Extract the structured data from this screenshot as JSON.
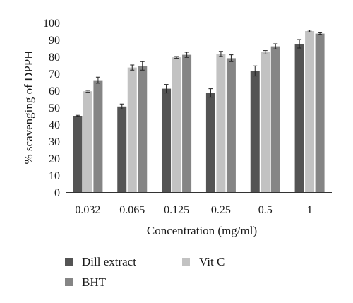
{
  "chart_data": {
    "type": "bar",
    "ylabel": "% scavenging of DPPH",
    "xlabel": "Concentration (mg/ml)",
    "categories": [
      "0.032",
      "0.065",
      "0.125",
      "0.25",
      "0.5",
      "1"
    ],
    "ylim": [
      0,
      100
    ],
    "yticks": [
      0,
      10,
      20,
      30,
      40,
      50,
      60,
      70,
      80,
      90,
      100
    ],
    "series": [
      {
        "name": "Dill extract",
        "color": "#545454",
        "values": [
          45,
          50.5,
          61,
          58.5,
          71.5,
          87.5
        ],
        "errors": [
          0.3,
          1.5,
          2.5,
          2.5,
          3,
          2.5
        ]
      },
      {
        "name": "Vit C",
        "color": "#c2c2c2",
        "values": [
          59.5,
          73.5,
          79.5,
          81.5,
          82.5,
          95
        ],
        "errors": [
          0.5,
          1.5,
          0.5,
          1.5,
          1,
          0.5
        ]
      },
      {
        "name": "BHT",
        "color": "#858585",
        "values": [
          66,
          74.5,
          81,
          79,
          86,
          93.5
        ],
        "errors": [
          1.8,
          2.5,
          1.5,
          2,
          1.5,
          0.5
        ]
      }
    ],
    "legend_position": "bottom",
    "grid": false
  }
}
